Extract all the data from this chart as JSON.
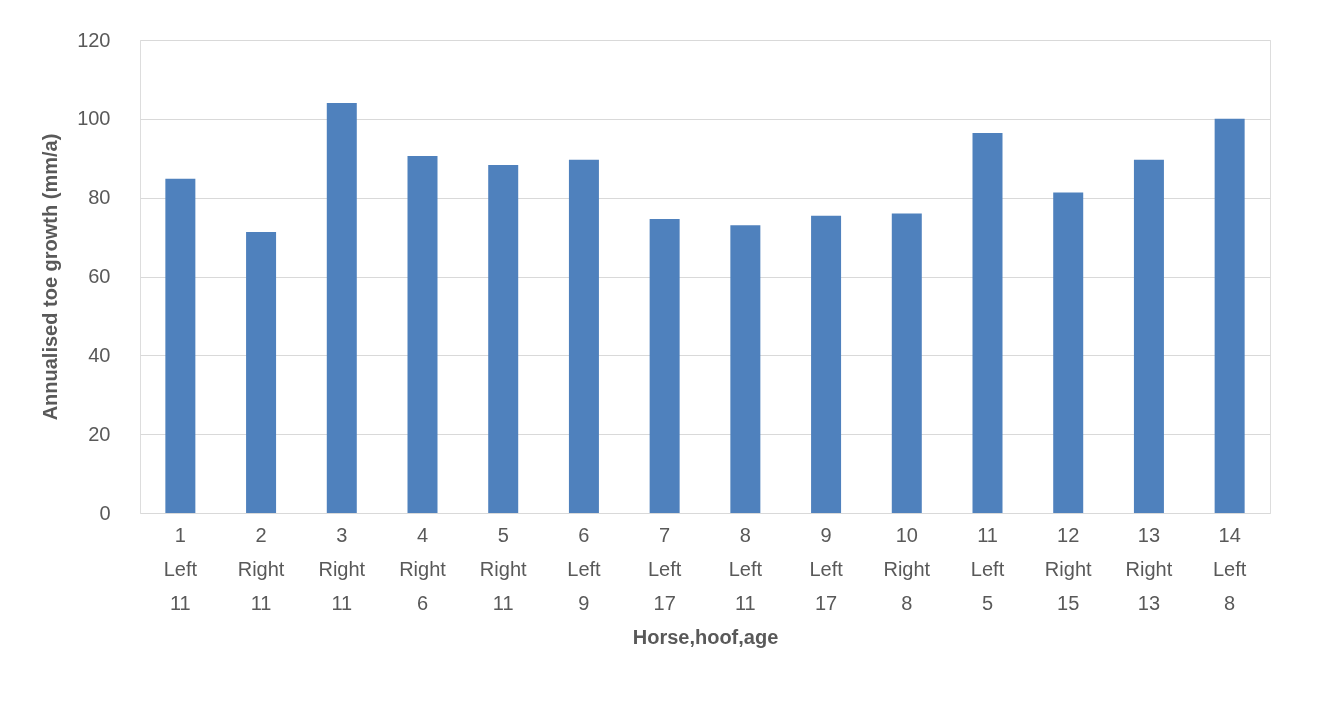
{
  "chart_data": {
    "type": "bar",
    "xlabel": "Horse,hoof,age",
    "ylabel": "Annualised toe growth (mm/a)",
    "categories": [
      "1\nLeft\n11",
      "2\nRight\n11",
      "3\nRight\n11",
      "4\nRight\n6",
      "5\nRight\n11",
      "6\nLeft\n9",
      "7\nLeft\n17",
      "8\nLeft\n11",
      "9\nLeft\n17",
      "10\nRight\n8",
      "11\nLeft\n5",
      "12\nRight\n15",
      "13\nRight\n13",
      "14\nLeft\n8"
    ],
    "values": [
      84.8,
      71.3,
      104,
      90.6,
      88.3,
      89.6,
      74.6,
      73,
      75.4,
      76,
      96.4,
      81.3,
      89.6,
      100
    ],
    "color": "#4f81bd",
    "ylim": [
      0,
      120
    ],
    "yticks": [
      0,
      20,
      40,
      60,
      80,
      100,
      120
    ],
    "grid": "y",
    "legend": false
  }
}
